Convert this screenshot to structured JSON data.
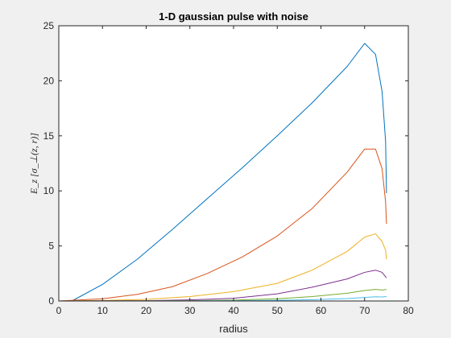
{
  "chart_data": {
    "type": "line",
    "title": "1-D gaussian pulse with noise",
    "xlabel": "radius",
    "ylabel": "E_z [σ_⊥(z, r)]",
    "xlim": [
      0,
      80
    ],
    "ylim": [
      0,
      25
    ],
    "xticks": [
      0,
      10,
      20,
      30,
      40,
      50,
      60,
      70,
      80
    ],
    "yticks": [
      0,
      5,
      10,
      15,
      20,
      25
    ],
    "grid": false,
    "legend": "none",
    "series": [
      {
        "color": "#0072BD",
        "x": [
          0,
          3,
          10,
          18,
          26,
          34,
          42,
          50,
          58,
          66,
          70,
          72.5,
          74,
          74.8,
          75
        ],
        "values": [
          0,
          0,
          1.5,
          3.8,
          6.5,
          9.3,
          12.1,
          15.0,
          18.0,
          21.3,
          23.4,
          22.4,
          19.0,
          14.5,
          9.8
        ]
      },
      {
        "color": "#D95319",
        "x": [
          0,
          10,
          18,
          26,
          34,
          42,
          50,
          58,
          66,
          70,
          72.5,
          74,
          74.8,
          75
        ],
        "values": [
          0,
          0.2,
          0.6,
          1.3,
          2.5,
          4.0,
          5.9,
          8.4,
          11.7,
          13.8,
          13.8,
          12.0,
          9.0,
          7.0
        ]
      },
      {
        "color": "#EDB120",
        "x": [
          0,
          10,
          20,
          30,
          40,
          50,
          58,
          66,
          70,
          72.5,
          74,
          74.8,
          75
        ],
        "values": [
          0,
          0.05,
          0.15,
          0.4,
          0.85,
          1.6,
          2.8,
          4.5,
          5.8,
          6.1,
          5.4,
          4.6,
          3.8
        ]
      },
      {
        "color": "#7E2F8E",
        "x": [
          0,
          20,
          30,
          40,
          50,
          58,
          66,
          70,
          72.5,
          74,
          75
        ],
        "values": [
          0,
          0.03,
          0.1,
          0.25,
          0.65,
          1.25,
          2.0,
          2.6,
          2.8,
          2.6,
          2.1
        ]
      },
      {
        "color": "#77AC30",
        "x": [
          0,
          20,
          30,
          40,
          50,
          58,
          66,
          70,
          72.5,
          74,
          75
        ],
        "values": [
          0,
          0.01,
          0.03,
          0.08,
          0.2,
          0.4,
          0.7,
          0.95,
          1.05,
          1.0,
          1.05
        ]
      },
      {
        "color": "#4DBEEE",
        "x": [
          0,
          20,
          30,
          40,
          50,
          58,
          66,
          70,
          72.5,
          74,
          75
        ],
        "values": [
          0,
          0.0,
          0.01,
          0.03,
          0.06,
          0.12,
          0.22,
          0.32,
          0.38,
          0.37,
          0.4
        ]
      }
    ]
  }
}
